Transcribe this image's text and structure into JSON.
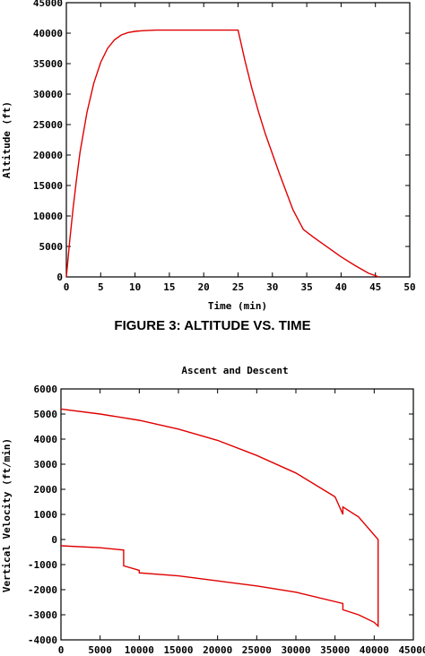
{
  "chart_data": [
    {
      "type": "line",
      "title": "",
      "caption": "FIGURE 3: ALTITUDE VS. TIME",
      "xlabel": "Time (min)",
      "ylabel": "Altitude (ft)",
      "xlim": [
        0,
        50
      ],
      "ylim": [
        0,
        45000
      ],
      "xticks": [
        0,
        5,
        10,
        15,
        20,
        25,
        30,
        35,
        40,
        45,
        50
      ],
      "yticks": [
        0,
        5000,
        10000,
        15000,
        20000,
        25000,
        30000,
        35000,
        40000,
        45000
      ],
      "grid": false,
      "color": "#e00000",
      "series": [
        {
          "x": [
            0,
            0.5,
            1,
            1.5,
            2,
            3,
            4,
            5,
            6,
            7,
            8,
            9,
            10,
            11,
            12,
            13,
            25,
            26,
            27,
            28,
            29,
            30,
            31,
            32,
            33,
            34.5,
            36,
            38,
            40,
            42,
            44,
            45.5
          ],
          "y": [
            0,
            6000,
            11500,
            16200,
            20500,
            27000,
            31800,
            35200,
            37500,
            38900,
            39700,
            40100,
            40300,
            40400,
            40450,
            40500,
            40500,
            35500,
            31000,
            27000,
            23400,
            20200,
            17000,
            14000,
            11000,
            7800,
            6500,
            4900,
            3300,
            1900,
            600,
            0
          ]
        }
      ]
    },
    {
      "type": "line",
      "title": "Ascent and Descent",
      "xlabel": "",
      "ylabel": "Vertical Velocity (ft/min)",
      "xlim": [
        0,
        45000
      ],
      "ylim": [
        -4000,
        6000
      ],
      "xticks": [
        0,
        5000,
        10000,
        15000,
        20000,
        25000,
        30000,
        35000,
        40000,
        45000
      ],
      "yticks": [
        -4000,
        -3000,
        -2000,
        -1000,
        0,
        1000,
        2000,
        3000,
        4000,
        5000,
        6000
      ],
      "grid": false,
      "color": "#e00000",
      "series": [
        {
          "x": [
            0,
            5000,
            10000,
            15000,
            20000,
            25000,
            30000,
            35000,
            36000,
            36000,
            38000,
            40500,
            40500,
            40500,
            40000,
            38000,
            36000,
            36000,
            30000,
            25000,
            20000,
            15000,
            10000,
            10000,
            8000,
            8000,
            5000,
            0
          ],
          "y": [
            5200,
            5000,
            4750,
            4400,
            3950,
            3350,
            2650,
            1700,
            1000,
            1300,
            900,
            0,
            0,
            -3450,
            -3300,
            -3000,
            -2800,
            -2550,
            -2100,
            -1850,
            -1650,
            -1450,
            -1330,
            -1230,
            -1050,
            -420,
            -330,
            -250
          ]
        }
      ]
    }
  ]
}
